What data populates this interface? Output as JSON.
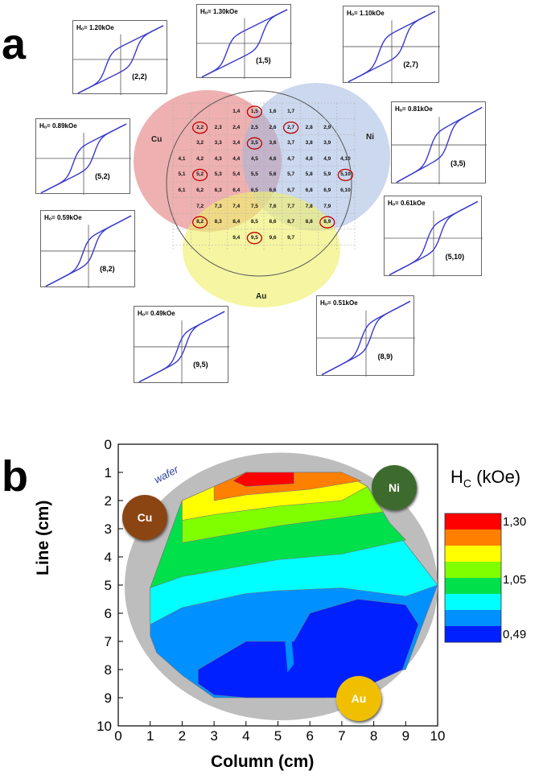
{
  "panel_a": {
    "label": "a",
    "venn_labels": {
      "cu": "Cu",
      "ni": "Ni",
      "au": "Au"
    },
    "cells": [
      [
        "1,4",
        "1,5",
        "1,6",
        "1,7"
      ],
      [
        "2,2",
        "2,3",
        "2,4",
        "2,5",
        "2,6",
        "2,7",
        "2,8",
        "2,9"
      ],
      [
        "3,2",
        "3,3",
        "3,4",
        "3,5",
        "3,6",
        "3,7",
        "3,8",
        "3,9"
      ],
      [
        "4,1",
        "4,2",
        "4,3",
        "4,4",
        "4,5",
        "4,6",
        "4,7",
        "4,8",
        "4,9",
        "4,10"
      ],
      [
        "5,1",
        "5,2",
        "5,3",
        "5,4",
        "5,5",
        "5,6",
        "5,7",
        "5,8",
        "5,9",
        "5,10"
      ],
      [
        "6,1",
        "6,2",
        "6,3",
        "6,4",
        "6,5",
        "6,6",
        "6,7",
        "6,8",
        "6,9",
        "6,10"
      ],
      [
        "7,2",
        "7,3",
        "7,4",
        "7,5",
        "7,6",
        "7,7",
        "7,8",
        "7,9"
      ],
      [
        "8,2",
        "8,3",
        "8,4",
        "8,5",
        "8,6",
        "8,7",
        "8,8",
        "8,9"
      ],
      [
        "9,4",
        "9,5",
        "9,6",
        "9,7"
      ]
    ],
    "circled_cells": [
      "1,5",
      "2,2",
      "2,7",
      "3,5",
      "5,2",
      "5,10",
      "8,2",
      "8,9",
      "9,5"
    ],
    "insets": [
      {
        "hc": "Hₒ= 1.20kOe",
        "coord": "(2,2)"
      },
      {
        "hc": "Hₒ= 1.30kOe",
        "coord": "(1,5)"
      },
      {
        "hc": "Hₒ= 1.10kOe",
        "coord": "(2,7)"
      },
      {
        "hc": "Hₒ= 0.89kOe",
        "coord": "(5,2)"
      },
      {
        "hc": "Hₒ= 0.81kOe",
        "coord": "(3,5)"
      },
      {
        "hc": "Hₒ= 0.59kOe",
        "coord": "(8,2)"
      },
      {
        "hc": "Hₒ= 0.61kOe",
        "coord": "(5,10)"
      },
      {
        "hc": "Hₒ= 0.49kOe",
        "coord": "(9,5)"
      },
      {
        "hc": "Hₒ= 0.51kOe",
        "coord": "(8,9)"
      }
    ]
  },
  "chart_data": {
    "type": "heatmap",
    "panel_label": "b",
    "xlabel": "Column (cm)",
    "ylabel": "Line (cm)",
    "xlim": [
      0,
      10
    ],
    "ylim": [
      10,
      0
    ],
    "x_ticks": [
      "0",
      "1",
      "2",
      "3",
      "4",
      "5",
      "6",
      "7",
      "8",
      "9",
      "10"
    ],
    "y_ticks": [
      "0",
      "1",
      "2",
      "3",
      "4",
      "5",
      "6",
      "7",
      "8",
      "9",
      "10"
    ],
    "wafer_label": "wafer",
    "colorbar": {
      "title": "H",
      "title_sub": "C",
      "title_unit": " (kOe)",
      "tick_labels": [
        "1,30",
        "1,05",
        "0,49"
      ],
      "colors": [
        "#ff0000",
        "#ff8000",
        "#ffff00",
        "#80ff00",
        "#00e04a",
        "#00ffff",
        "#0090ff",
        "#0020ff"
      ]
    },
    "element_badges": [
      {
        "label": "Cu",
        "color": "#8b4513"
      },
      {
        "label": "Ni",
        "color": "#3d6b2e"
      },
      {
        "label": "Au",
        "color": "#f0c000"
      }
    ]
  }
}
